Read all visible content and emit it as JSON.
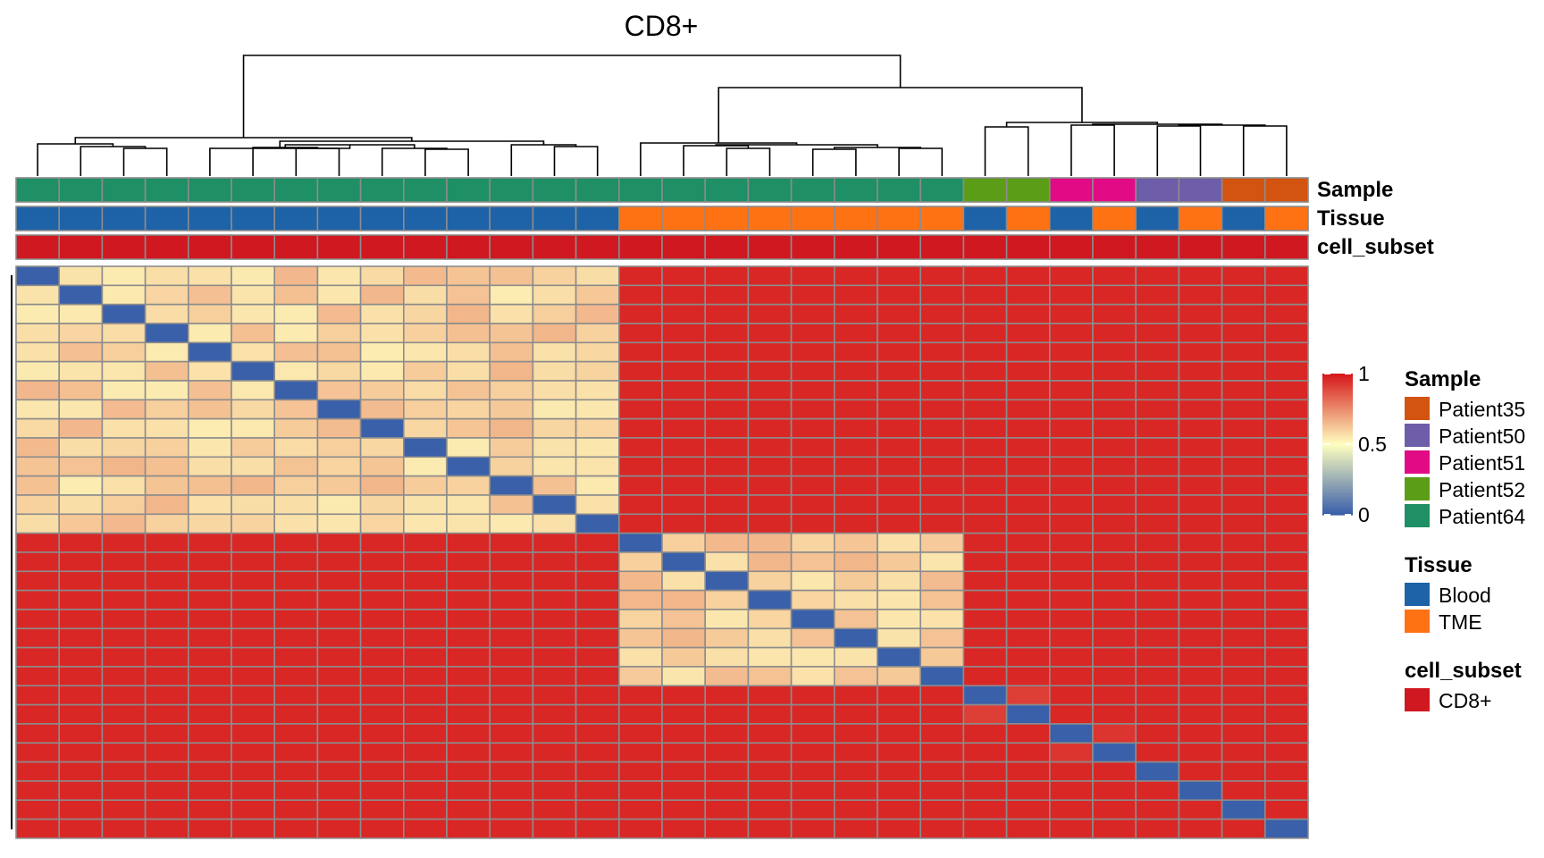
{
  "chart_data": {
    "type": "heatmap",
    "title": "CD8+",
    "n": 30,
    "annotation_labels": [
      "Sample",
      "Tissue",
      "cell_subset"
    ],
    "sample": [
      "Patient64",
      "Patient64",
      "Patient64",
      "Patient64",
      "Patient64",
      "Patient64",
      "Patient64",
      "Patient64",
      "Patient64",
      "Patient64",
      "Patient64",
      "Patient64",
      "Patient64",
      "Patient64",
      "Patient64",
      "Patient64",
      "Patient64",
      "Patient64",
      "Patient64",
      "Patient64",
      "Patient64",
      "Patient64",
      "Patient52",
      "Patient52",
      "Patient51",
      "Patient51",
      "Patient50",
      "Patient50",
      "Patient35",
      "Patient35"
    ],
    "tissue": [
      "Blood",
      "Blood",
      "Blood",
      "Blood",
      "Blood",
      "Blood",
      "Blood",
      "Blood",
      "Blood",
      "Blood",
      "Blood",
      "Blood",
      "Blood",
      "Blood",
      "TME",
      "TME",
      "TME",
      "TME",
      "TME",
      "TME",
      "TME",
      "TME",
      "Blood",
      "TME",
      "Blood",
      "TME",
      "Blood",
      "TME",
      "Blood",
      "TME"
    ],
    "cell_subset": [
      "CD8+",
      "CD8+",
      "CD8+",
      "CD8+",
      "CD8+",
      "CD8+",
      "CD8+",
      "CD8+",
      "CD8+",
      "CD8+",
      "CD8+",
      "CD8+",
      "CD8+",
      "CD8+",
      "CD8+",
      "CD8+",
      "CD8+",
      "CD8+",
      "CD8+",
      "CD8+",
      "CD8+",
      "CD8+",
      "CD8+",
      "CD8+",
      "CD8+",
      "CD8+",
      "CD8+",
      "CD8+",
      "CD8+",
      "CD8+"
    ],
    "matrix_blocks": {
      "groups": [
        [
          0,
          13
        ],
        [
          14,
          21
        ],
        [
          22,
          22
        ],
        [
          23,
          23
        ],
        [
          24,
          24
        ],
        [
          25,
          25
        ],
        [
          26,
          26
        ],
        [
          27,
          27
        ],
        [
          28,
          28
        ],
        [
          29,
          29
        ]
      ],
      "diagonal_value": 0,
      "within_group_value": 0.6,
      "within_group_variation": 0.06,
      "between_group_value": 0.97,
      "near_pairs": [
        [
          22,
          23,
          0.92
        ],
        [
          24,
          25,
          0.94
        ]
      ]
    },
    "colorbar": {
      "min": 0,
      "max": 1,
      "ticks": [
        1,
        0.5,
        0
      ],
      "colors": [
        "#3B60AA",
        "#FFFFBF",
        "#D7191C"
      ]
    },
    "legend": {
      "sample": {
        "title": "Sample",
        "entries": [
          {
            "label": "Patient35",
            "color": "#D35411"
          },
          {
            "label": "Patient50",
            "color": "#6E5DA8"
          },
          {
            "label": "Patient51",
            "color": "#E10B86"
          },
          {
            "label": "Patient52",
            "color": "#5C9D18"
          },
          {
            "label": "Patient64",
            "color": "#1F8F65"
          }
        ]
      },
      "tissue": {
        "title": "Tissue",
        "entries": [
          {
            "label": "Blood",
            "color": "#1E62A8"
          },
          {
            "label": "TME",
            "color": "#FF7214"
          }
        ]
      },
      "cell_subset": {
        "title": "cell_subset",
        "entries": [
          {
            "label": "CD8+",
            "color": "#CF1820"
          }
        ]
      }
    }
  }
}
